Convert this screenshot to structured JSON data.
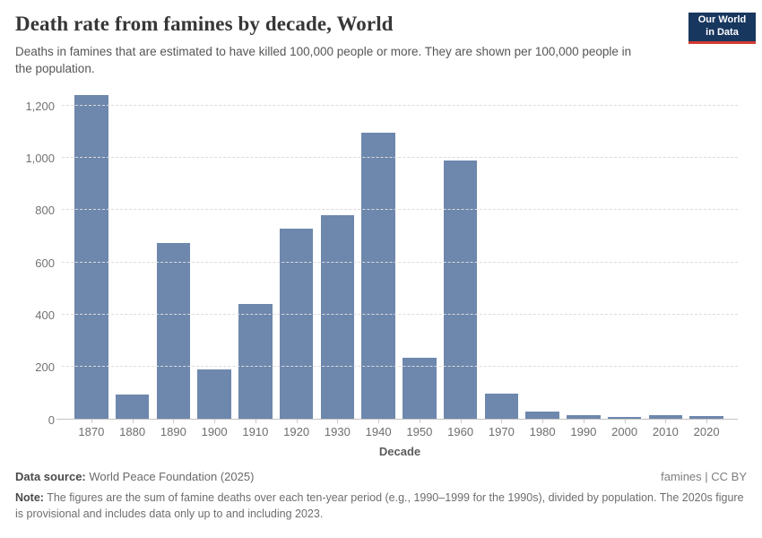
{
  "header": {
    "title": "Death rate from famines by decade, World",
    "subtitle": "Deaths in famines that are estimated to have killed 100,000 people or more. They are shown per 100,000 people in the population.",
    "logo": {
      "line1": "Our World",
      "line2": "in Data",
      "bg_color": "#18375f",
      "accent_color": "#d13b32"
    }
  },
  "chart_data": {
    "type": "bar",
    "title": "Death rate from famines by decade, World",
    "categories": [
      "1870",
      "1880",
      "1890",
      "1900",
      "1910",
      "1920",
      "1930",
      "1940",
      "1950",
      "1960",
      "1970",
      "1980",
      "1990",
      "2000",
      "2010",
      "2020"
    ],
    "values": [
      1240,
      95,
      675,
      190,
      440,
      730,
      780,
      1095,
      235,
      990,
      100,
      30,
      18,
      8,
      15,
      12
    ],
    "xlabel": "Decade",
    "ylabel": "",
    "ylim": [
      0,
      1200
    ],
    "yticks": [
      0,
      200,
      400,
      600,
      800,
      1000,
      1200
    ],
    "ytick_labels": [
      "0",
      "200",
      "400",
      "600",
      "800",
      "1,000",
      "1,200"
    ],
    "bar_color": "#6e87ad",
    "grid": true,
    "gridline_style": "dashed",
    "legend_position": "none"
  },
  "footer": {
    "source_label": "Data source:",
    "source_value": " World Peace Foundation (2025)",
    "rights": "famines | CC BY",
    "note_label": "Note:",
    "note_value": " The figures are the sum of famine deaths over each ten-year period (e.g., 1990–1999 for the 1990s), divided by population. The 2020s figure is provisional and includes data only up to and including 2023."
  }
}
